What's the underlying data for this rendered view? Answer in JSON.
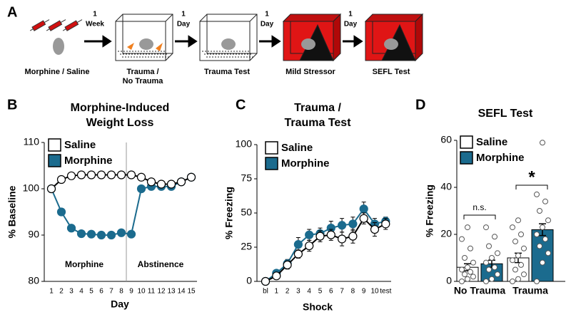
{
  "panel_labels": [
    "A",
    "B",
    "C",
    "D"
  ],
  "diagram": {
    "steps": [
      {
        "lines": [
          "Morphine / Saline"
        ]
      },
      {
        "lines": [
          "Trauma /",
          "No Trauma"
        ]
      },
      {
        "lines": [
          "Trauma Test"
        ]
      },
      {
        "lines": [
          "Mild Stressor"
        ]
      },
      {
        "lines": [
          "SEFL Test"
        ]
      }
    ],
    "intervals": [
      [
        "1",
        "Week"
      ],
      [
        "1",
        "Day"
      ],
      [
        "1",
        "Day"
      ],
      [
        "1",
        "Day"
      ]
    ]
  },
  "chart_data": [
    {
      "type": "line",
      "title": [
        "Morphine-Induced",
        "Weight Loss"
      ],
      "y_label": "% Baseline",
      "x_label": "Day",
      "categories": [
        "1",
        "2",
        "3",
        "4",
        "5",
        "6",
        "7",
        "8",
        "9",
        "10",
        "11",
        "12",
        "13",
        "14",
        "15"
      ],
      "series": [
        {
          "name": "Saline",
          "color": "#ffffff",
          "values": [
            100,
            102,
            102.8,
            103,
            103,
            103,
            103,
            103,
            103,
            102.5,
            101.5,
            101,
            101,
            101.5,
            102.5
          ]
        },
        {
          "name": "Morphine",
          "color": "#1b6b8e",
          "values": [
            100,
            95,
            91.5,
            90.3,
            90.2,
            90,
            90,
            90.5,
            90.2,
            100,
            100.5,
            100.5,
            100.5,
            101.5,
            102.5
          ]
        }
      ],
      "ylim": [
        80,
        110
      ],
      "yticks": [
        80,
        90,
        100,
        110
      ],
      "annotations": [
        "Morphine",
        "Abstinence"
      ],
      "legend": "upper left"
    },
    {
      "type": "line",
      "title": [
        "Trauma /",
        "Trauma Test"
      ],
      "y_label": "% Freezing",
      "x_label": "Shock",
      "categories": [
        "bl",
        "1",
        "2",
        "3",
        "4",
        "5",
        "6",
        "7",
        "8",
        "9",
        "10",
        "test"
      ],
      "series": [
        {
          "name": "Saline",
          "color": "#ffffff",
          "values": [
            0,
            4,
            12,
            20,
            26,
            33,
            34,
            31,
            33,
            46,
            38,
            42
          ],
          "errors": [
            1,
            2,
            3,
            3,
            4,
            4,
            4,
            5,
            5,
            4,
            5,
            4
          ]
        },
        {
          "name": "Morphine",
          "color": "#1b6b8e",
          "values": [
            0,
            6,
            13,
            27,
            34,
            35,
            39,
            41,
            42,
            53,
            42,
            44
          ],
          "errors": [
            1,
            2,
            3,
            5,
            4,
            4,
            5,
            5,
            5,
            5,
            4,
            3
          ]
        }
      ],
      "ylim": [
        0,
        100
      ],
      "yticks": [
        0,
        25,
        50,
        75,
        100
      ],
      "legend": "upper left"
    },
    {
      "type": "bar",
      "title": [
        "SEFL Test"
      ],
      "y_label": "% Freezing",
      "categories": [
        "No Trauma",
        "Trauma"
      ],
      "series": [
        {
          "name": "Saline",
          "color": "#ffffff",
          "values": [
            6,
            10
          ],
          "errors": [
            1.5,
            2
          ],
          "points": [
            [
              0,
              1,
              2,
              3,
              4,
              5,
              6,
              8,
              10,
              14,
              18,
              23
            ],
            [
              0,
              1,
              3,
              5,
              7,
              9,
              11,
              14,
              17,
              20,
              23,
              26
            ]
          ]
        },
        {
          "name": "Morphine",
          "color": "#1b6b8e",
          "values": [
            7.5,
            22
          ],
          "errors": [
            1.5,
            2.5
          ],
          "points": [
            [
              0,
              1,
              3,
              5,
              6,
              8,
              10,
              12,
              15,
              19,
              23
            ],
            [
              0,
              8,
              12,
              15,
              18,
              20,
              23,
              26,
              30,
              34,
              37,
              59
            ]
          ]
        }
      ],
      "ylim": [
        0,
        60
      ],
      "yticks": [
        0,
        20,
        40,
        60
      ],
      "annotations": [
        "n.s.",
        "*"
      ],
      "legend": "upper left"
    }
  ]
}
